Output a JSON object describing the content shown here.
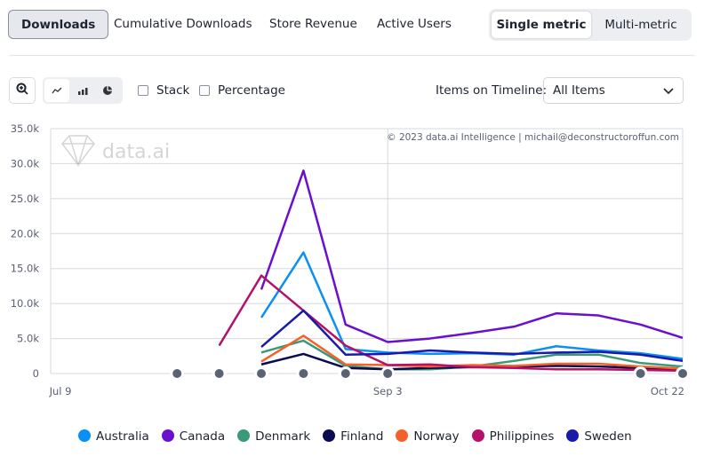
{
  "tabs": [
    {
      "label": "Downloads",
      "active": true
    },
    {
      "label": "Cumulative Downloads"
    },
    {
      "label": "Store Revenue"
    },
    {
      "label": "Active Users"
    }
  ],
  "metric_toggle": {
    "single": "Single metric",
    "multi": "Multi-metric",
    "selected": "Single metric"
  },
  "toolbar": {
    "zoom_icon": "zoom-in-icon",
    "chart_types": [
      "line-chart-icon",
      "bar-chart-icon",
      "pie-chart-icon"
    ],
    "selected_chart_type": "line",
    "stack_label": "Stack",
    "stack_checked": false,
    "percentage_label": "Percentage",
    "percentage_checked": false,
    "items_label": "Items on Timeline:",
    "items_value": "All Items"
  },
  "watermark": "data.ai",
  "copyright": "© 2023 data.ai Intelligence | michail@deconstructoroffun.com",
  "chart_data": {
    "type": "line",
    "x": [
      "Jul 9",
      "Jul 16",
      "Jul 23",
      "Jul 30",
      "Aug 6",
      "Aug 13",
      "Aug 20",
      "Aug 27",
      "Sep 3",
      "Sep 10",
      "Sep 17",
      "Sep 24",
      "Oct 1",
      "Oct 8",
      "Oct 15",
      "Oct 22"
    ],
    "x_tick_labels": [
      "Jul 9",
      "Sep 3",
      "Oct 22"
    ],
    "y_ticks": [
      "0",
      "5.0k",
      "10.0k",
      "15.0k",
      "20.0k",
      "25.0k",
      "30.0k",
      "35.0k"
    ],
    "ylim": [
      0,
      35000
    ],
    "grid": true,
    "legend_position": "bottom",
    "event_markers": [
      "Jul 30",
      "Aug 6",
      "Aug 13",
      "Aug 20",
      "Aug 27",
      "Sep 3",
      "Oct 15",
      "Oct 22"
    ],
    "series": [
      {
        "name": "Australia",
        "color": "#0a8ff5",
        "values": [
          null,
          null,
          null,
          null,
          null,
          8000,
          17300,
          3500,
          3000,
          2800,
          2900,
          2700,
          3900,
          3300,
          2900,
          2100
        ]
      },
      {
        "name": "Canada",
        "color": "#6a0fd0",
        "values": [
          null,
          null,
          null,
          null,
          null,
          12000,
          29000,
          7000,
          4500,
          5000,
          5800,
          6700,
          8600,
          8300,
          7000,
          5100
        ]
      },
      {
        "name": "Denmark",
        "color": "#3a9a78",
        "values": [
          null,
          null,
          null,
          null,
          null,
          3000,
          4700,
          1100,
          600,
          600,
          1000,
          1800,
          2700,
          2700,
          1500,
          1000
        ]
      },
      {
        "name": "Finland",
        "color": "#0a0a50",
        "values": [
          null,
          null,
          null,
          null,
          null,
          1300,
          2800,
          800,
          600,
          800,
          900,
          1000,
          1100,
          1000,
          800,
          600
        ]
      },
      {
        "name": "Norway",
        "color": "#f5602a",
        "values": [
          null,
          null,
          null,
          null,
          null,
          1700,
          5400,
          1300,
          1200,
          1000,
          1200,
          1100,
          1400,
          1400,
          1000,
          700
        ]
      },
      {
        "name": "Philippines",
        "color": "#b5106a",
        "values": [
          null,
          null,
          null,
          null,
          4000,
          14000,
          9000,
          4000,
          1200,
          1300,
          900,
          800,
          600,
          600,
          500,
          400
        ]
      },
      {
        "name": "Sweden",
        "color": "#1a1aa8",
        "values": [
          null,
          null,
          null,
          null,
          null,
          3800,
          9000,
          2700,
          2800,
          3300,
          3000,
          2800,
          3000,
          3100,
          2700,
          1800
        ]
      }
    ]
  }
}
